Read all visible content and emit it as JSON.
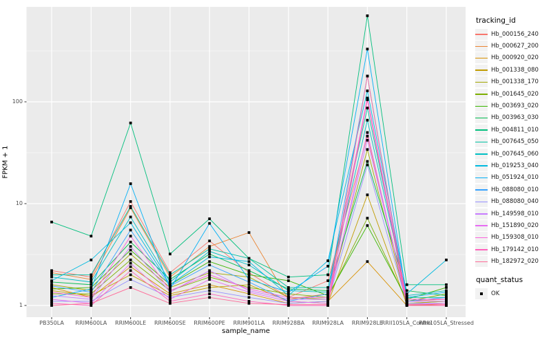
{
  "chart_data": {
    "type": "line",
    "title": "",
    "xlabel": "sample_name",
    "ylabel": "FPKM + 1",
    "y_scale": "log10",
    "y_ticks": [
      1,
      10,
      100
    ],
    "y_minor_ticks": [
      3.162,
      31.62,
      316.2
    ],
    "ylim_px_note": "log axis, decade = 148px",
    "panel_bg": "#EBEBEB",
    "grid_color": "#FFFFFF",
    "point_color": "#000000",
    "categories": [
      "PB350LA",
      "RRIM600LA",
      "RRIM600LE",
      "RRIM600SE",
      "RRIM600PE",
      "RRIM901LA",
      "RRIM928BA",
      "RRIM928LA",
      "RRIM928LE",
      "RRII105LA_Control",
      "RRII105LA_Stressed"
    ],
    "legend": {
      "color_title": "tracking_id",
      "shape_title": "quant_status",
      "shape_items": [
        {
          "label": "OK"
        }
      ]
    },
    "series": [
      {
        "name": "Hb_000156_240",
        "color": "#F8766D",
        "values": [
          2.2,
          1.9,
          10.5,
          2.1,
          4.3,
          2.1,
          1.2,
          1.75,
          46,
          1.1,
          1.15
        ]
      },
      {
        "name": "Hb_000627_200",
        "color": "#EA8331",
        "values": [
          2.1,
          1.8,
          9.1,
          1.9,
          3.8,
          5.2,
          1.15,
          1.3,
          105,
          1.05,
          1.1
        ]
      },
      {
        "name": "Hb_000920_020",
        "color": "#D89000",
        "values": [
          1.5,
          1.2,
          2.4,
          1.3,
          1.6,
          1.3,
          1.05,
          1.1,
          2.7,
          1.0,
          1.05
        ]
      },
      {
        "name": "Hb_001338_080",
        "color": "#C09B00",
        "values": [
          1.4,
          1.25,
          2.0,
          1.25,
          1.5,
          1.6,
          1.1,
          1.05,
          12.2,
          1.02,
          1.0
        ]
      },
      {
        "name": "Hb_001338_170",
        "color": "#A3A500",
        "values": [
          1.6,
          1.4,
          3.2,
          1.5,
          2.1,
          1.9,
          1.2,
          1.15,
          34,
          1.05,
          1.1
        ]
      },
      {
        "name": "Hb_001645_020",
        "color": "#7CAE00",
        "values": [
          1.3,
          1.3,
          2.8,
          1.4,
          1.9,
          1.5,
          1.3,
          1.2,
          7.2,
          1.1,
          1.3
        ]
      },
      {
        "name": "Hb_003693_020",
        "color": "#39B600",
        "values": [
          1.45,
          1.5,
          3.5,
          1.6,
          2.7,
          2.0,
          1.75,
          1.25,
          6.1,
          1.15,
          1.5
        ]
      },
      {
        "name": "Hb_003963_030",
        "color": "#00BB4E",
        "values": [
          1.7,
          1.6,
          4.2,
          1.8,
          3.2,
          2.2,
          1.45,
          1.4,
          26,
          1.4,
          1.25
        ]
      },
      {
        "name": "Hb_004811_010",
        "color": "#00BF7D",
        "values": [
          6.6,
          4.8,
          62,
          3.2,
          7.1,
          2.9,
          1.9,
          2.0,
          700,
          1.6,
          1.6
        ]
      },
      {
        "name": "Hb_007645_050",
        "color": "#00C1A3",
        "values": [
          2.0,
          2.0,
          9.4,
          2.0,
          3.6,
          2.9,
          1.5,
          1.5,
          87,
          1.2,
          1.2
        ]
      },
      {
        "name": "Hb_007645_060",
        "color": "#00BFC4",
        "values": [
          1.9,
          1.7,
          7.4,
          1.7,
          3.4,
          2.5,
          1.4,
          1.35,
          66,
          1.25,
          1.4
        ]
      },
      {
        "name": "Hb_019253_040",
        "color": "#00BAE0",
        "values": [
          1.75,
          2.8,
          6.5,
          1.6,
          3.0,
          2.7,
          1.25,
          2.75,
          128,
          1.3,
          2.8
        ]
      },
      {
        "name": "Hb_051924_010",
        "color": "#00B0F6",
        "values": [
          1.2,
          1.45,
          15.7,
          1.45,
          6.4,
          1.8,
          1.35,
          2.43,
          330,
          1.2,
          1.35
        ]
      },
      {
        "name": "Hb_088080_010",
        "color": "#35A2FF",
        "values": [
          1.55,
          1.35,
          5.5,
          1.55,
          2.5,
          1.7,
          1.1,
          1.3,
          179,
          1.1,
          1.2
        ]
      },
      {
        "name": "Hb_088080_040",
        "color": "#9590FF",
        "values": [
          1.1,
          1.1,
          1.8,
          1.2,
          1.4,
          1.2,
          1.05,
          1.1,
          24,
          1.05,
          1.05
        ]
      },
      {
        "name": "Hb_149598_010",
        "color": "#C77CFF",
        "values": [
          1.25,
          1.15,
          3.8,
          1.35,
          2.2,
          1.4,
          1.15,
          1.15,
          42,
          1.1,
          1.1
        ]
      },
      {
        "name": "Hb_151890_020",
        "color": "#E76BF3",
        "values": [
          1.15,
          1.05,
          2.6,
          1.15,
          1.8,
          1.35,
          1.1,
          1.05,
          50,
          1.02,
          1.05
        ]
      },
      {
        "name": "Hb_159308_010",
        "color": "#FA62DB",
        "values": [
          1.35,
          1.2,
          4.8,
          1.4,
          2.0,
          1.45,
          1.2,
          1.2,
          109,
          1.15,
          1.15
        ]
      },
      {
        "name": "Hb_179142_010",
        "color": "#FF62BC",
        "values": [
          1.05,
          1.0,
          2.2,
          1.1,
          1.3,
          1.1,
          1.0,
          1.0,
          105,
          1.0,
          1.0
        ]
      },
      {
        "name": "Hb_182972_020",
        "color": "#FF6A98",
        "values": [
          1.0,
          1.05,
          1.5,
          1.05,
          1.2,
          1.05,
          1.02,
          1.02,
          179,
          1.02,
          1.02
        ]
      }
    ]
  }
}
